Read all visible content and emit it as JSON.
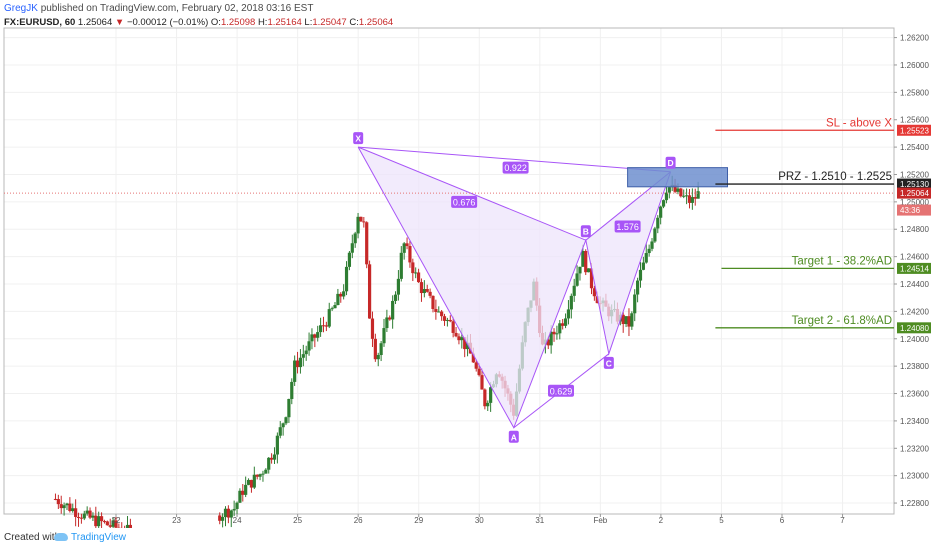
{
  "header": {
    "author": "GregJK",
    "published": "published on TradingView.com, February 02, 2018 03:16 EST",
    "symbol": "FX:EURUSD, 60",
    "last": "1.25064",
    "arrow": "▼",
    "change": "−0.00012 (−0.01%)",
    "o_label": "O:",
    "o": "1.25098",
    "h_label": "H:",
    "h": "1.25164",
    "l_label": "L:",
    "l": "1.25047",
    "c_label": "C:",
    "c": "1.25064"
  },
  "footer": {
    "created_with": "Created with",
    "brand": "TradingView"
  },
  "colors": {
    "up": "#2e7d32",
    "down": "#c62828",
    "pattern_line": "#a855f7",
    "pattern_fill": "#ede4fb",
    "prz_box": "#6f8fcf",
    "sl": "#e53935",
    "target": "#4e8c22",
    "prz_line": "#222222",
    "grid": "#f0f0f0"
  },
  "chart_data": {
    "type": "candlestick",
    "ylim": [
      1.2272,
      1.2627
    ],
    "x_ticks": [
      {
        "label": "22",
        "x": 1
      },
      {
        "label": "23",
        "x": 2
      },
      {
        "label": "24",
        "x": 3
      },
      {
        "label": "25",
        "x": 4
      },
      {
        "label": "26",
        "x": 5
      },
      {
        "label": "29",
        "x": 6
      },
      {
        "label": "30",
        "x": 7
      },
      {
        "label": "31",
        "x": 8
      },
      {
        "label": "Feb",
        "x": 9
      },
      {
        "label": "2",
        "x": 10
      },
      {
        "label": "5",
        "x": 11
      },
      {
        "label": "6",
        "x": 12
      },
      {
        "label": "7",
        "x": 13
      }
    ],
    "y_ticks": [
      "1.22800",
      "1.23000",
      "1.23200",
      "1.23400",
      "1.23600",
      "1.23800",
      "1.24000",
      "1.24200",
      "1.24400",
      "1.24600",
      "1.24800",
      "1.25000",
      "1.25200",
      "1.25400",
      "1.25600",
      "1.25800",
      "1.26000",
      "1.26200"
    ],
    "price_tags": [
      {
        "label": "1.25523",
        "y": 1.25523,
        "color": "#e53935"
      },
      {
        "label": "1.25130",
        "y": 1.2513,
        "color": "#222222"
      },
      {
        "label": "1.25064",
        "y": 1.25064,
        "color": "#c62828"
      },
      {
        "label": "43:36",
        "y": 1.2494,
        "color": "#e57373"
      },
      {
        "label": "1.24514",
        "y": 1.24514,
        "color": "#4e8c22"
      },
      {
        "label": "1.24080",
        "y": 1.2408,
        "color": "#4e8c22"
      }
    ],
    "current_price": 1.25064,
    "pattern": {
      "points": [
        {
          "label": "X",
          "x": 5.0,
          "y": 1.254
        },
        {
          "label": "A",
          "x": 7.57,
          "y": 1.2335
        },
        {
          "label": "B",
          "x": 8.76,
          "y": 1.2472
        },
        {
          "label": "C",
          "x": 9.14,
          "y": 1.2389
        },
        {
          "label": "D",
          "x": 10.16,
          "y": 1.2522
        }
      ],
      "ratios": [
        {
          "label": "0.922",
          "x": 7.6,
          "y": 1.2525
        },
        {
          "label": "0.676",
          "x": 6.75,
          "y": 1.25
        },
        {
          "label": "0.629",
          "x": 8.35,
          "y": 1.2362
        },
        {
          "label": "1.576",
          "x": 9.45,
          "y": 1.2482
        }
      ]
    },
    "prz_box": {
      "x0": 9.45,
      "x1": 11.1,
      "y0": 1.2511,
      "y1": 1.2525
    },
    "levels": [
      {
        "name": "SL",
        "label": "SL - above X",
        "y": 1.25523,
        "x_start": 10.9,
        "color": "#e53935"
      },
      {
        "name": "PRZ",
        "label": "PRZ - 1.2510 - 1.2525",
        "y": 1.2513,
        "x_start": 10.9,
        "color": "#222222"
      },
      {
        "name": "Target1",
        "label": "Target 1 - 38.2%AD",
        "y": 1.24514,
        "x_start": 11.0,
        "color": "#4e8c22"
      },
      {
        "name": "Target2",
        "label": "Target 2 - 61.8%AD",
        "y": 1.2408,
        "x_start": 10.9,
        "color": "#4e8c22"
      }
    ],
    "anchors": [
      [
        0.0,
        1.2283
      ],
      [
        0.5,
        1.227
      ],
      [
        1.0,
        1.2262
      ],
      [
        1.5,
        1.2255
      ],
      [
        2.0,
        1.2255
      ],
      [
        2.5,
        1.2268
      ],
      [
        2.95,
        1.2276
      ],
      [
        3.1,
        1.229
      ],
      [
        3.4,
        1.2302
      ],
      [
        3.6,
        1.2318
      ],
      [
        3.8,
        1.2345
      ],
      [
        3.95,
        1.238
      ],
      [
        4.2,
        1.2396
      ],
      [
        4.5,
        1.2415
      ],
      [
        4.75,
        1.2435
      ],
      [
        4.9,
        1.247
      ],
      [
        5.0,
        1.2492
      ],
      [
        5.1,
        1.2482
      ],
      [
        5.18,
        1.242
      ],
      [
        5.3,
        1.2385
      ],
      [
        5.6,
        1.243
      ],
      [
        5.75,
        1.247
      ],
      [
        6.0,
        1.244
      ],
      [
        6.3,
        1.242
      ],
      [
        6.6,
        1.2408
      ],
      [
        6.9,
        1.2385
      ],
      [
        7.1,
        1.2352
      ],
      [
        7.3,
        1.238
      ],
      [
        7.57,
        1.2346
      ],
      [
        7.75,
        1.2408
      ],
      [
        7.9,
        1.244
      ],
      [
        8.05,
        1.2392
      ],
      [
        8.4,
        1.2415
      ],
      [
        8.7,
        1.2462
      ],
      [
        8.85,
        1.244
      ],
      [
        9.0,
        1.2425
      ],
      [
        9.2,
        1.2418
      ],
      [
        9.5,
        1.241
      ],
      [
        9.6,
        1.244
      ],
      [
        9.8,
        1.2465
      ],
      [
        9.95,
        1.2492
      ],
      [
        10.1,
        1.2512
      ],
      [
        10.3,
        1.2505
      ],
      [
        10.5,
        1.25
      ],
      [
        10.62,
        1.2506
      ]
    ]
  }
}
